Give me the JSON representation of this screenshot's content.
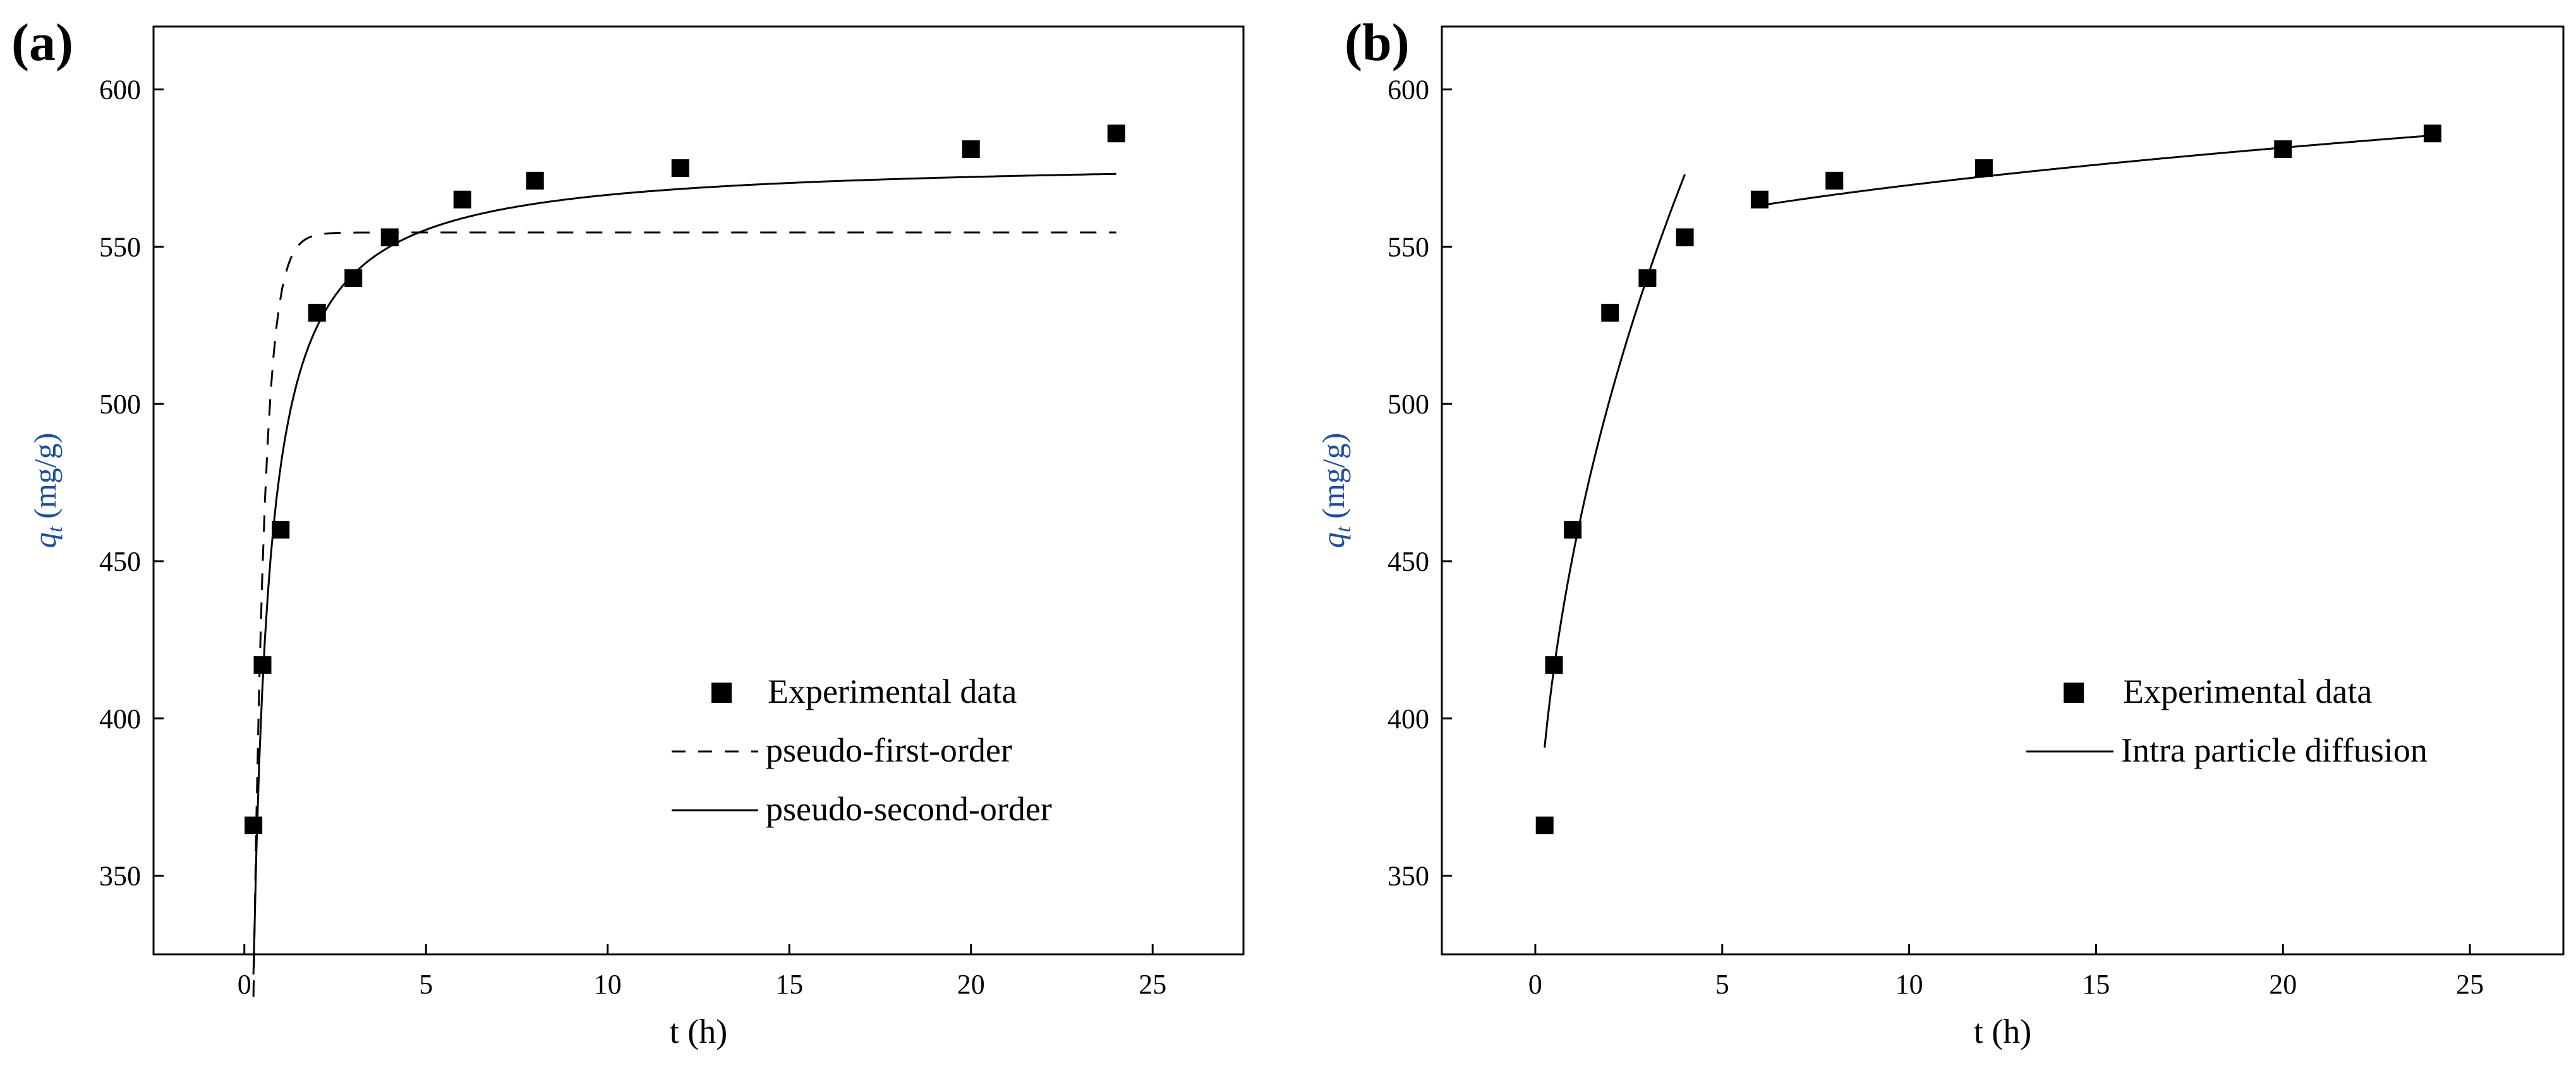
{
  "chart_data": [
    {
      "panel_label": "(a)",
      "type": "scatter",
      "xlabel": "t (h)",
      "ylabel_symbol": "q",
      "ylabel_subscript": "t",
      "ylabel_unit": "(mg/g)",
      "xlim": [
        -2.5,
        27.5
      ],
      "ylim": [
        325,
        620
      ],
      "xticks": [
        0,
        5,
        10,
        15,
        20,
        25
      ],
      "yticks": [
        350,
        400,
        450,
        500,
        550,
        600
      ],
      "xtick_labels": [
        "0",
        "5",
        "10",
        "15",
        "20",
        "25"
      ],
      "ytick_labels": [
        "350",
        "400",
        "450",
        "500",
        "550",
        "600"
      ],
      "grid": false,
      "legend_position": "bottom-right",
      "experimental": {
        "name": "Experimental data",
        "x": [
          0.25,
          0.5,
          1,
          2,
          3,
          4,
          6,
          8,
          12,
          20,
          24
        ],
        "y": [
          366,
          417,
          460,
          529,
          540,
          553,
          565,
          571,
          575,
          581,
          586
        ]
      },
      "fits": [
        {
          "name": "pseudo-first-order",
          "style": "dashed",
          "model": "pfo",
          "qe": 554.5,
          "k": 3.3,
          "t_start": 0.25,
          "t_end": 24
        },
        {
          "name": "pseudo-second-order",
          "style": "solid",
          "model": "pso",
          "qe": 578,
          "k": 0.0085,
          "t_start": 0.25,
          "t_end": 24
        }
      ]
    },
    {
      "panel_label": "(b)",
      "type": "scatter",
      "xlabel": "t (h)",
      "ylabel_symbol": "q",
      "ylabel_subscript": "t",
      "ylabel_unit": "(mg/g)",
      "xlim": [
        -2.5,
        27.5
      ],
      "ylim": [
        325,
        620
      ],
      "xticks": [
        0,
        5,
        10,
        15,
        20,
        25
      ],
      "yticks": [
        350,
        400,
        450,
        500,
        550,
        600
      ],
      "xtick_labels": [
        "0",
        "5",
        "10",
        "15",
        "20",
        "25"
      ],
      "ytick_labels": [
        "350",
        "400",
        "450",
        "500",
        "550",
        "600"
      ],
      "grid": false,
      "legend_position": "bottom-right",
      "experimental": {
        "name": "Experimental data",
        "x": [
          0.25,
          0.5,
          1,
          2,
          3,
          4,
          6,
          8,
          12,
          20,
          24
        ],
        "y": [
          366,
          417,
          460,
          529,
          540,
          553,
          565,
          571,
          575,
          581,
          586
        ]
      },
      "fits": [
        {
          "name": "Intra particle diffusion",
          "style": "solid",
          "model": "sqrt",
          "segments": [
            {
              "t_start": 0.25,
              "t_end": 4,
              "a": 330,
              "b": 121.5
            },
            {
              "t_start": 6,
              "t_end": 24,
              "a": 540.8,
              "b": 9.1
            }
          ]
        }
      ]
    }
  ]
}
